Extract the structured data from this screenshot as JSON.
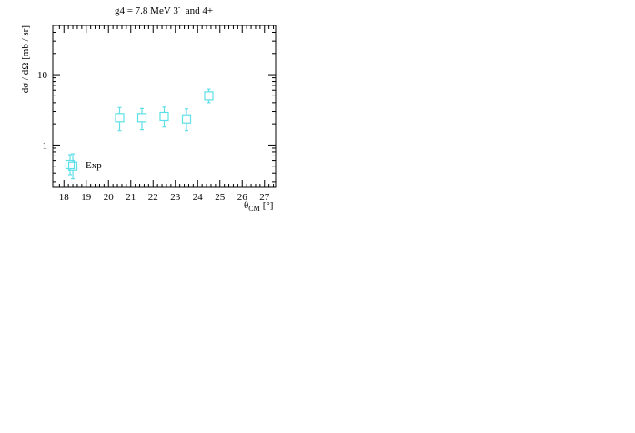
{
  "chart_data": {
    "type": "scatter",
    "title": "g4 = 7.8 MeV 3",
    "title_superscript": "-",
    "title_suffix": "and 4+",
    "xlabel": "θ",
    "xlabel_subscript": "CM",
    "xlabel_unit": "[°]",
    "ylabel": "dσ / dΩ [mb / sr]",
    "xlim": [
      17.5,
      27.5
    ],
    "ylim": [
      0.25,
      50
    ],
    "yscale": "log",
    "grid": false,
    "x_ticks": [
      "18",
      "19",
      "20",
      "21",
      "22",
      "23",
      "24",
      "25",
      "26",
      "27"
    ],
    "y_ticks": [
      "1",
      "10"
    ],
    "legend": {
      "placement": "bottom-left",
      "entries": [
        "Exp"
      ]
    },
    "series": [
      {
        "name": "Exp",
        "color": "#5fdfe8",
        "marker": "open-square",
        "points": [
          {
            "x": 18.4,
            "y": 0.5,
            "y_low": 0.33,
            "y_high": 0.75
          },
          {
            "x": 20.5,
            "y": 2.45,
            "y_low": 1.6,
            "y_high": 3.4
          },
          {
            "x": 21.5,
            "y": 2.45,
            "y_low": 1.65,
            "y_high": 3.3
          },
          {
            "x": 22.5,
            "y": 2.55,
            "y_low": 1.8,
            "y_high": 3.45
          },
          {
            "x": 23.5,
            "y": 2.35,
            "y_low": 1.6,
            "y_high": 3.25
          },
          {
            "x": 24.5,
            "y": 5.0,
            "y_low": 4.0,
            "y_high": 6.2
          }
        ]
      }
    ]
  }
}
